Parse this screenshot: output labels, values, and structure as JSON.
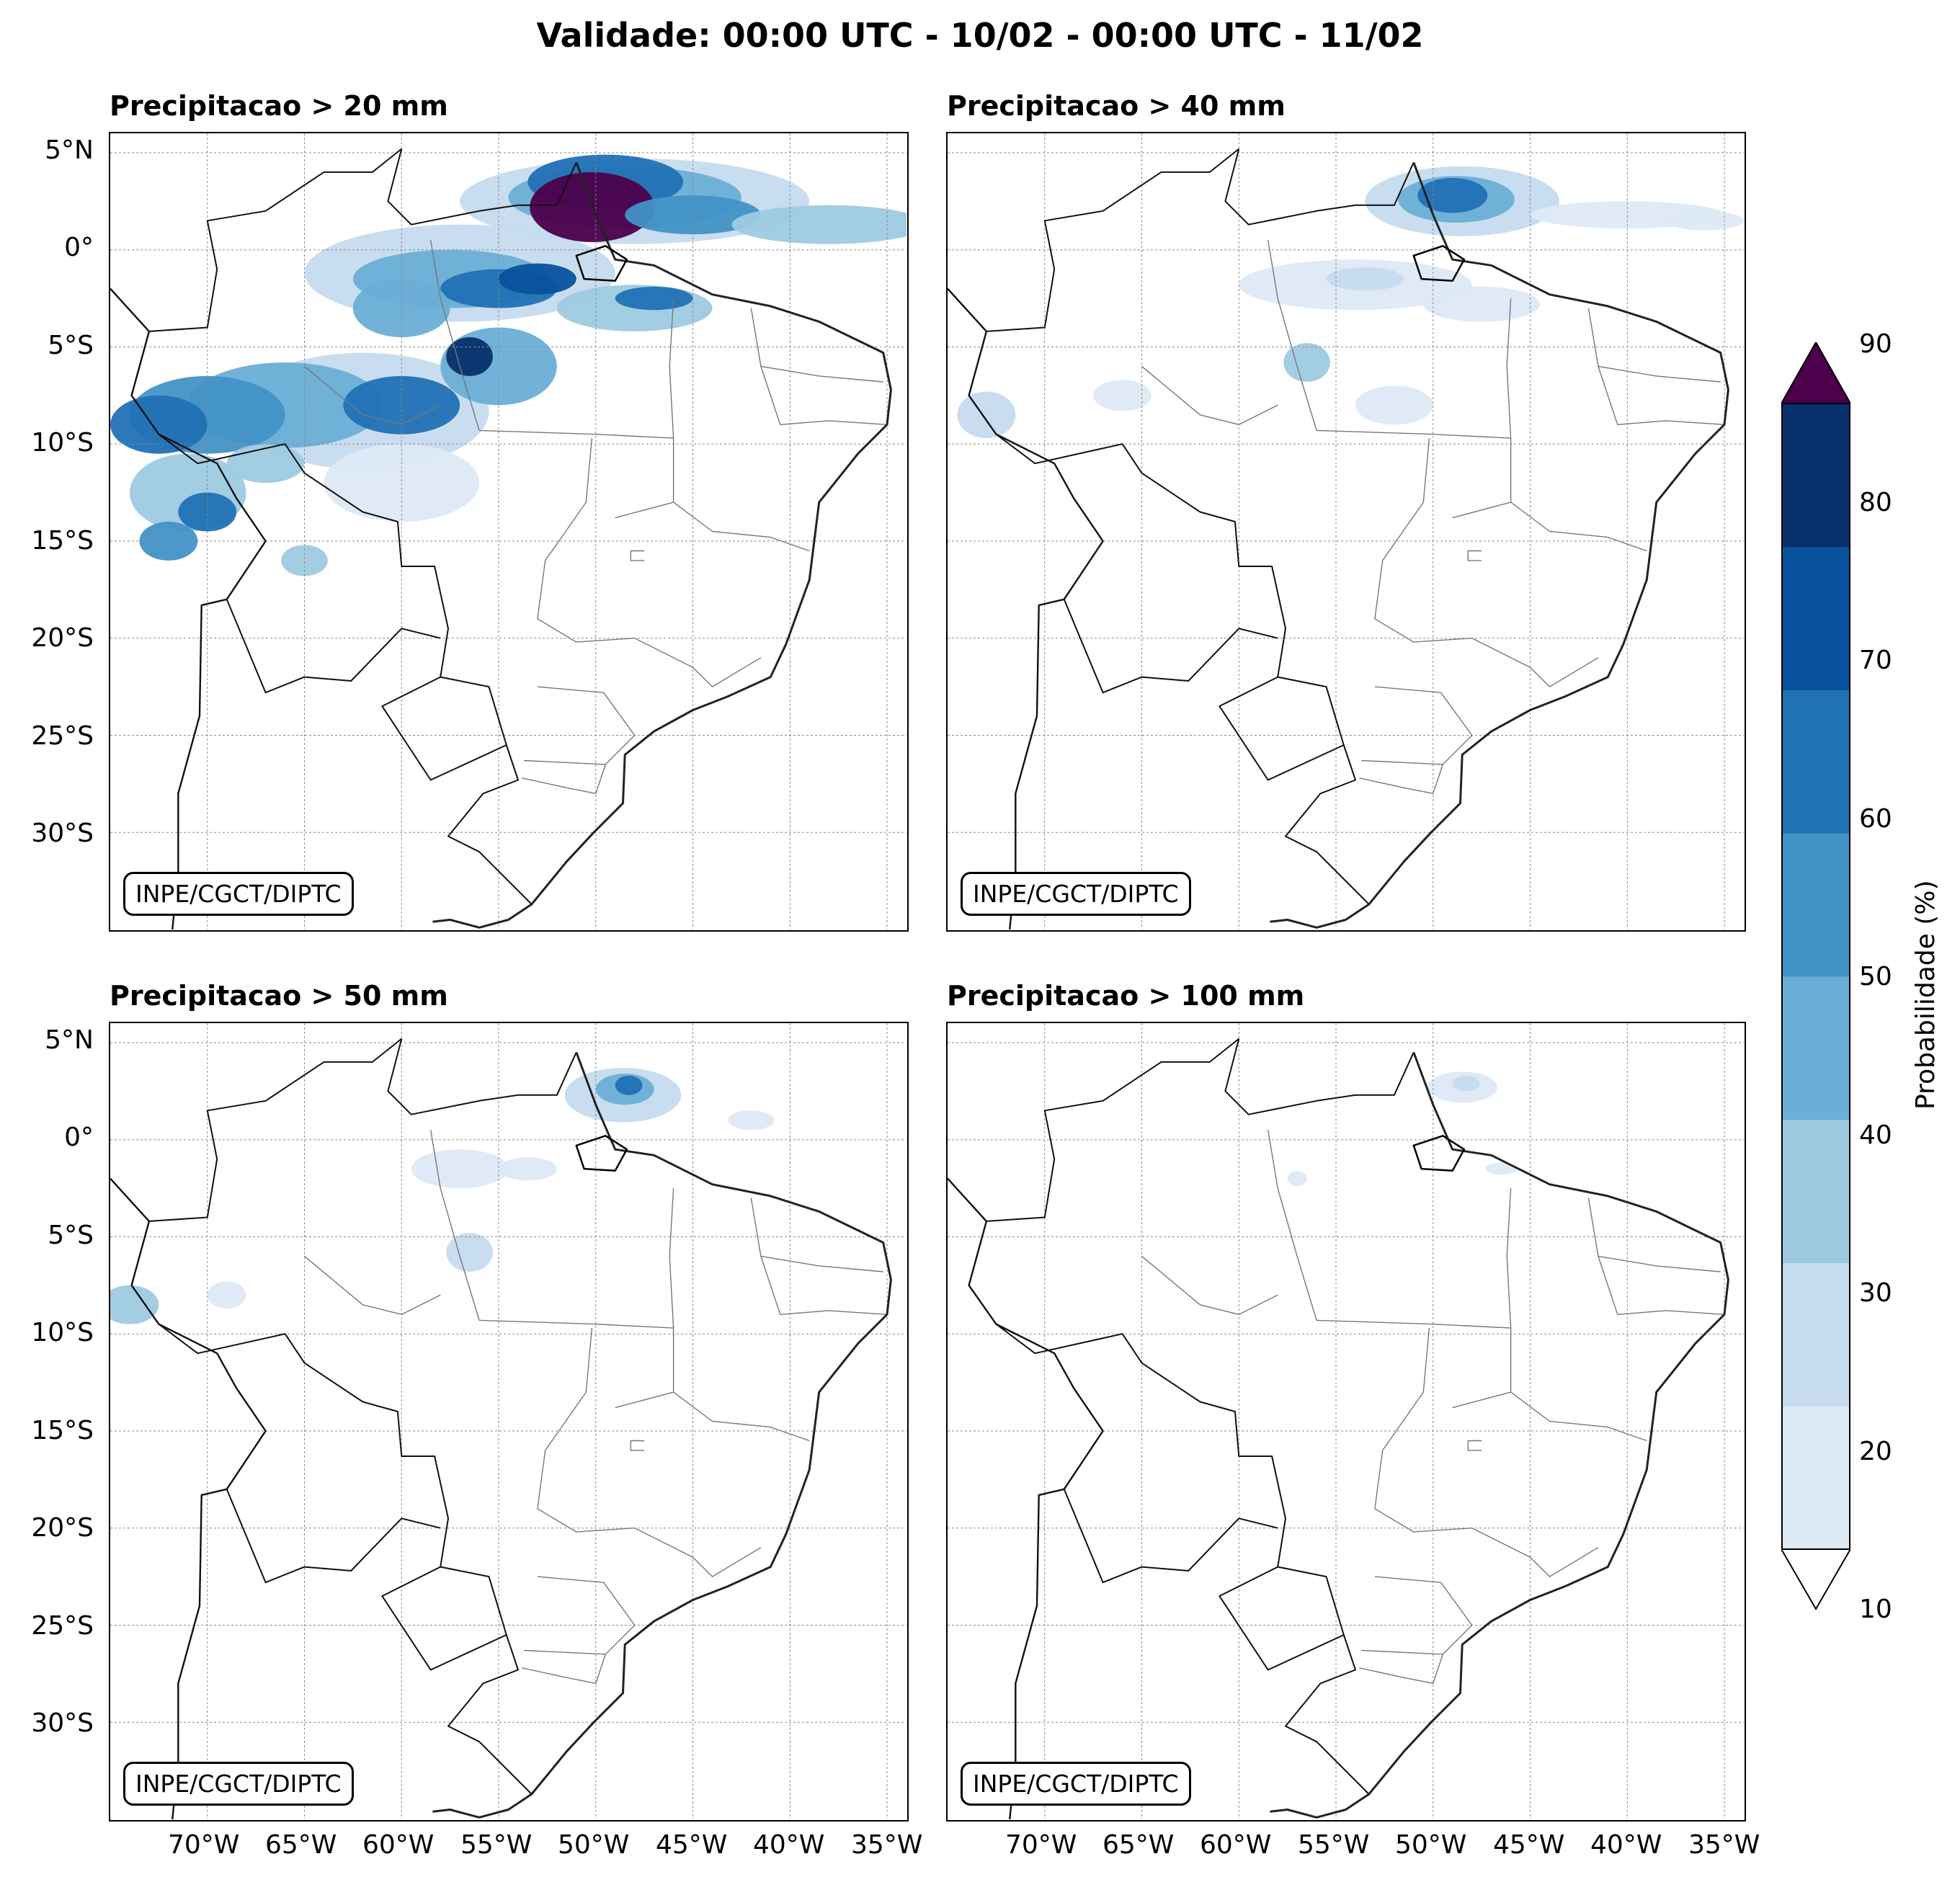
{
  "figure": {
    "title": "Validade: 00:00 UTC - 10/02 - 00:00 UTC - 11/02",
    "credit": "INPE/CGCT/DIPTC"
  },
  "panels": [
    {
      "title": "Precipitacao > 20 mm"
    },
    {
      "title": "Precipitacao > 40 mm"
    },
    {
      "title": "Precipitacao > 50 mm"
    },
    {
      "title": "Precipitacao > 100 mm"
    }
  ],
  "axes": {
    "lat_labels": [
      "5°N",
      "0°",
      "5°S",
      "10°S",
      "15°S",
      "20°S",
      "25°S",
      "30°S"
    ],
    "lon_labels": [
      "70°W",
      "65°W",
      "60°W",
      "55°W",
      "50°W",
      "45°W",
      "40°W",
      "35°W"
    ]
  },
  "colorbar": {
    "label": "Probabilidade (%)",
    "ticks": [
      "10",
      "20",
      "30",
      "40",
      "50",
      "60",
      "70",
      "80",
      "90"
    ],
    "colors": [
      "#dde9f5",
      "#c6dbef",
      "#9ecae1",
      "#6baed6",
      "#4292c6",
      "#2171b5",
      "#08519c",
      "#08306b"
    ],
    "over_color": "#4d004b",
    "under_color": "#ffffff"
  },
  "chart_data": {
    "type": "heatmap",
    "extent": {
      "lon": [
        -75,
        -34
      ],
      "lat": [
        -35,
        6
      ]
    },
    "levels_percent": [
      10,
      20,
      30,
      40,
      50,
      60,
      70,
      80,
      90
    ],
    "panels": [
      {
        "threshold_mm": 20,
        "max_probability_region": "Amapá / mouth of the Amazon (~1°N–4°N, 52°W–48°W) above 90%"
      },
      {
        "threshold_mm": 40,
        "max_probability_region": "Amapá (~1°N–3°N, 51°W–48°W) 50–70%"
      },
      {
        "threshold_mm": 50,
        "max_probability_region": "Amapá (~1°N–3°N, 50°W–48°W) 40–60%"
      },
      {
        "threshold_mm": 100,
        "max_probability_region": "off Amapá coast 10–20%"
      }
    ]
  }
}
